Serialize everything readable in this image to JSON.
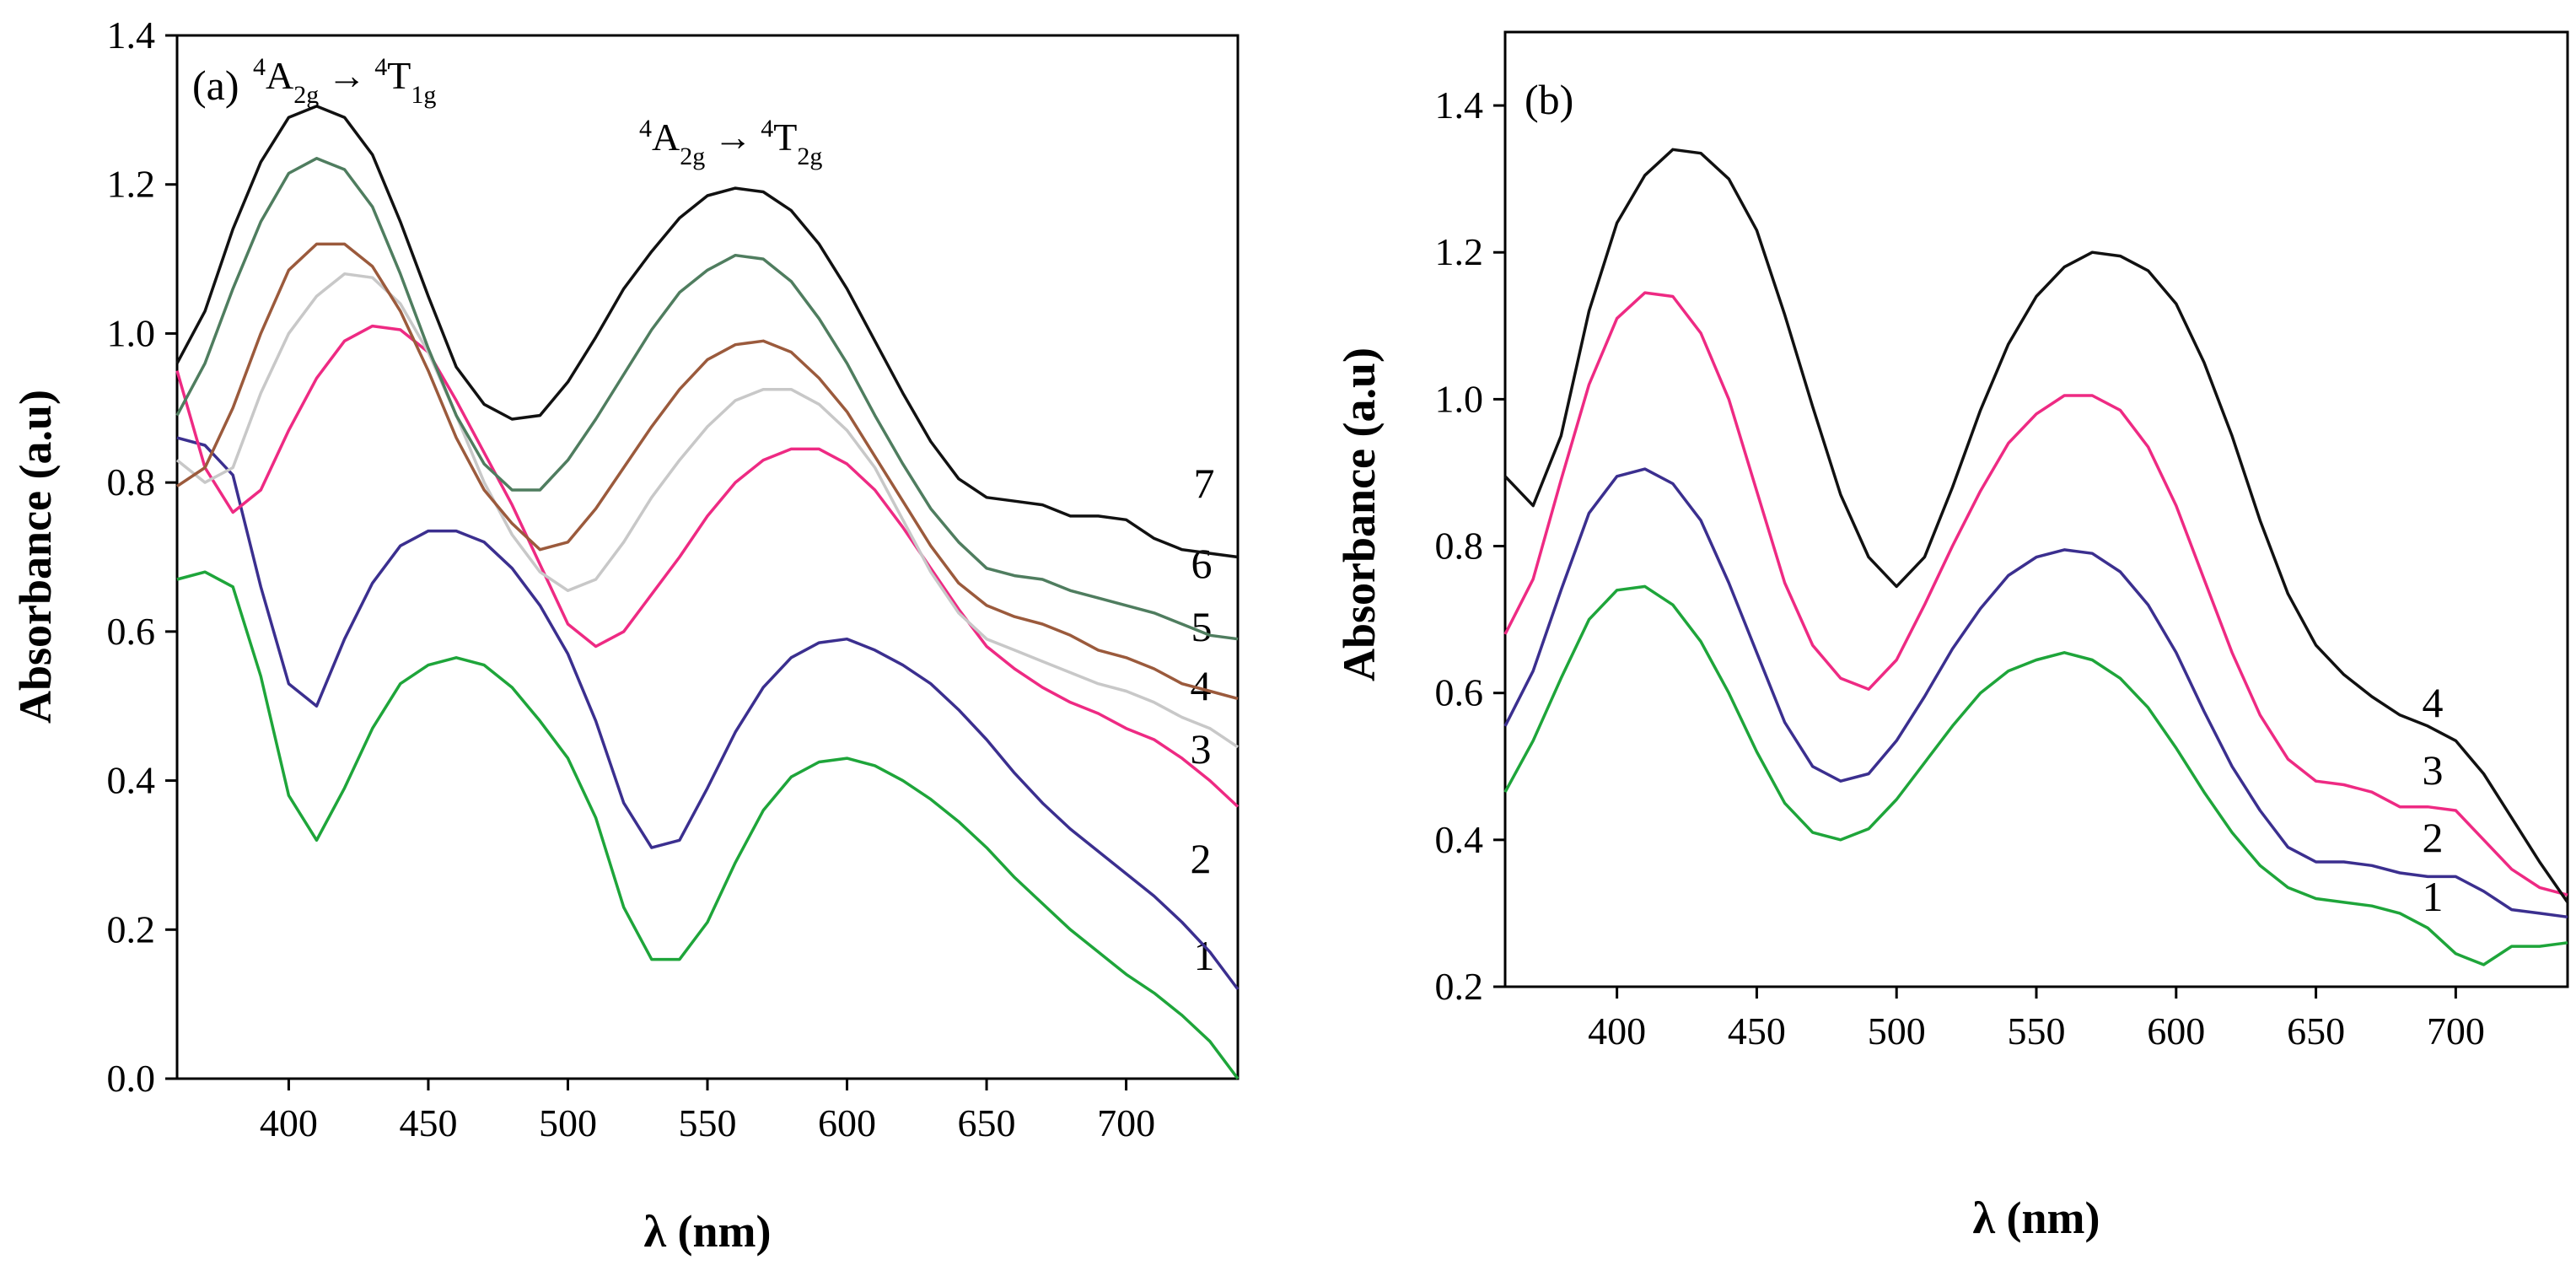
{
  "chart_data": [
    {
      "type": "line",
      "panel_label": "(a)",
      "xlabel": "λ (nm)",
      "ylabel": "Absorbance (a.u)",
      "xlim": [
        360,
        740
      ],
      "ylim": [
        0.0,
        1.4
      ],
      "xticks": [
        "400",
        "450",
        "500",
        "550",
        "600",
        "650",
        "700"
      ],
      "yticks": [
        "0.0",
        "0.2",
        "0.4",
        "0.6",
        "0.8",
        "1.0",
        "1.2",
        "1.4"
      ],
      "annotations": [
        {
          "text": "4A2g → 4T1g",
          "parts": [
            "4",
            "A",
            "2g",
            "→",
            "4",
            "T",
            "1g"
          ]
        },
        {
          "text": "4A2g → 4T2g",
          "parts": [
            "4",
            "A",
            "2g",
            "→",
            "4",
            "T",
            "2g"
          ]
        }
      ],
      "x": [
        360,
        370,
        380,
        390,
        400,
        410,
        420,
        430,
        440,
        450,
        460,
        470,
        480,
        490,
        500,
        510,
        520,
        530,
        540,
        550,
        560,
        570,
        580,
        590,
        600,
        610,
        620,
        630,
        640,
        650,
        660,
        670,
        680,
        690,
        700,
        710,
        720,
        730,
        740
      ],
      "series": [
        {
          "name": "1",
          "color": "#1ea53a",
          "values": [
            0.67,
            0.68,
            0.66,
            0.54,
            0.38,
            0.32,
            0.39,
            0.47,
            0.53,
            0.555,
            0.565,
            0.555,
            0.525,
            0.48,
            0.43,
            0.35,
            0.23,
            0.16,
            0.16,
            0.21,
            0.29,
            0.36,
            0.405,
            0.425,
            0.43,
            0.42,
            0.4,
            0.375,
            0.345,
            0.31,
            0.27,
            0.235,
            0.2,
            0.17,
            0.14,
            0.115,
            0.085,
            0.05,
            0.0
          ]
        },
        {
          "name": "2",
          "color": "#3b2f8f",
          "values": [
            0.86,
            0.85,
            0.81,
            0.66,
            0.53,
            0.5,
            0.59,
            0.665,
            0.715,
            0.735,
            0.735,
            0.72,
            0.685,
            0.635,
            0.57,
            0.48,
            0.37,
            0.31,
            0.32,
            0.39,
            0.465,
            0.525,
            0.565,
            0.585,
            0.59,
            0.575,
            0.555,
            0.53,
            0.495,
            0.455,
            0.41,
            0.37,
            0.335,
            0.305,
            0.275,
            0.245,
            0.21,
            0.17,
            0.12
          ]
        },
        {
          "name": "3",
          "color": "#ee2a83",
          "values": [
            0.95,
            0.82,
            0.76,
            0.79,
            0.87,
            0.94,
            0.99,
            1.01,
            1.005,
            0.975,
            0.91,
            0.84,
            0.77,
            0.69,
            0.61,
            0.58,
            0.6,
            0.65,
            0.7,
            0.755,
            0.8,
            0.83,
            0.845,
            0.845,
            0.825,
            0.79,
            0.74,
            0.685,
            0.63,
            0.58,
            0.55,
            0.525,
            0.505,
            0.49,
            0.47,
            0.455,
            0.43,
            0.4,
            0.365
          ]
        },
        {
          "name": "4",
          "color": "#c8c8c8",
          "values": [
            0.83,
            0.8,
            0.82,
            0.92,
            1.0,
            1.05,
            1.08,
            1.075,
            1.04,
            0.975,
            0.89,
            0.8,
            0.73,
            0.68,
            0.655,
            0.67,
            0.72,
            0.78,
            0.83,
            0.875,
            0.91,
            0.925,
            0.925,
            0.905,
            0.87,
            0.82,
            0.75,
            0.68,
            0.625,
            0.59,
            0.575,
            0.56,
            0.545,
            0.53,
            0.52,
            0.505,
            0.485,
            0.47,
            0.445
          ]
        },
        {
          "name": "5",
          "color": "#9b5a3c",
          "values": [
            0.795,
            0.82,
            0.9,
            1.0,
            1.085,
            1.12,
            1.12,
            1.09,
            1.03,
            0.95,
            0.86,
            0.79,
            0.745,
            0.71,
            0.72,
            0.765,
            0.82,
            0.875,
            0.925,
            0.965,
            0.985,
            0.99,
            0.975,
            0.94,
            0.895,
            0.835,
            0.775,
            0.715,
            0.665,
            0.635,
            0.62,
            0.61,
            0.595,
            0.575,
            0.565,
            0.55,
            0.53,
            0.52,
            0.51
          ]
        },
        {
          "name": "6",
          "color": "#4f7d5f",
          "values": [
            0.89,
            0.96,
            1.06,
            1.15,
            1.215,
            1.235,
            1.22,
            1.17,
            1.08,
            0.98,
            0.89,
            0.825,
            0.79,
            0.79,
            0.83,
            0.885,
            0.945,
            1.005,
            1.055,
            1.085,
            1.105,
            1.1,
            1.07,
            1.02,
            0.96,
            0.89,
            0.825,
            0.765,
            0.72,
            0.685,
            0.675,
            0.67,
            0.655,
            0.645,
            0.635,
            0.625,
            0.61,
            0.595,
            0.59
          ]
        },
        {
          "name": "7",
          "color": "#111111",
          "values": [
            0.96,
            1.03,
            1.14,
            1.23,
            1.29,
            1.305,
            1.29,
            1.24,
            1.15,
            1.05,
            0.955,
            0.905,
            0.885,
            0.89,
            0.935,
            0.995,
            1.06,
            1.11,
            1.155,
            1.185,
            1.195,
            1.19,
            1.165,
            1.12,
            1.06,
            0.99,
            0.92,
            0.855,
            0.805,
            0.78,
            0.775,
            0.77,
            0.755,
            0.755,
            0.75,
            0.725,
            0.71,
            0.705,
            0.7
          ]
        }
      ]
    },
    {
      "type": "line",
      "panel_label": "(b)",
      "xlabel": "λ (nm)",
      "ylabel": "Absorbance (a.u)",
      "xlim": [
        360,
        740
      ],
      "ylim": [
        0.2,
        1.5
      ],
      "xticks": [
        "400",
        "450",
        "500",
        "550",
        "600",
        "650",
        "700"
      ],
      "yticks": [
        "0.2",
        "0.4",
        "0.6",
        "0.8",
        "1.0",
        "1.2",
        "1.4"
      ],
      "x": [
        360,
        370,
        380,
        390,
        400,
        410,
        420,
        430,
        440,
        450,
        460,
        470,
        480,
        490,
        500,
        510,
        520,
        530,
        540,
        550,
        560,
        570,
        580,
        590,
        600,
        610,
        620,
        630,
        640,
        650,
        660,
        670,
        680,
        690,
        700,
        710,
        720,
        730,
        740
      ],
      "series": [
        {
          "name": "1",
          "color": "#1ea53a",
          "values": [
            0.465,
            0.535,
            0.62,
            0.7,
            0.74,
            0.745,
            0.72,
            0.67,
            0.6,
            0.52,
            0.45,
            0.41,
            0.4,
            0.415,
            0.455,
            0.505,
            0.555,
            0.6,
            0.63,
            0.645,
            0.655,
            0.645,
            0.62,
            0.58,
            0.525,
            0.465,
            0.41,
            0.365,
            0.335,
            0.32,
            0.315,
            0.31,
            0.3,
            0.28,
            0.245,
            0.23,
            0.255,
            0.255,
            0.26
          ]
        },
        {
          "name": "2",
          "color": "#3b2f8f",
          "values": [
            0.555,
            0.63,
            0.74,
            0.845,
            0.895,
            0.905,
            0.885,
            0.835,
            0.75,
            0.655,
            0.56,
            0.5,
            0.48,
            0.49,
            0.535,
            0.595,
            0.66,
            0.715,
            0.76,
            0.785,
            0.795,
            0.79,
            0.765,
            0.72,
            0.655,
            0.575,
            0.5,
            0.44,
            0.39,
            0.37,
            0.37,
            0.365,
            0.355,
            0.35,
            0.35,
            0.33,
            0.305,
            0.3,
            0.295
          ]
        },
        {
          "name": "3",
          "color": "#ee2a83",
          "values": [
            0.68,
            0.755,
            0.89,
            1.02,
            1.11,
            1.145,
            1.14,
            1.09,
            1.0,
            0.875,
            0.75,
            0.665,
            0.62,
            0.605,
            0.645,
            0.72,
            0.8,
            0.875,
            0.94,
            0.98,
            1.005,
            1.005,
            0.985,
            0.935,
            0.855,
            0.755,
            0.655,
            0.57,
            0.51,
            0.48,
            0.475,
            0.465,
            0.445,
            0.445,
            0.44,
            0.4,
            0.36,
            0.335,
            0.325
          ]
        },
        {
          "name": "4",
          "color": "#111111",
          "values": [
            0.895,
            0.855,
            0.95,
            1.12,
            1.24,
            1.305,
            1.34,
            1.335,
            1.3,
            1.23,
            1.115,
            0.99,
            0.87,
            0.785,
            0.745,
            0.785,
            0.88,
            0.985,
            1.075,
            1.14,
            1.18,
            1.2,
            1.195,
            1.175,
            1.13,
            1.05,
            0.95,
            0.835,
            0.735,
            0.665,
            0.625,
            0.595,
            0.57,
            0.555,
            0.535,
            0.49,
            0.43,
            0.37,
            0.315
          ]
        }
      ]
    }
  ]
}
